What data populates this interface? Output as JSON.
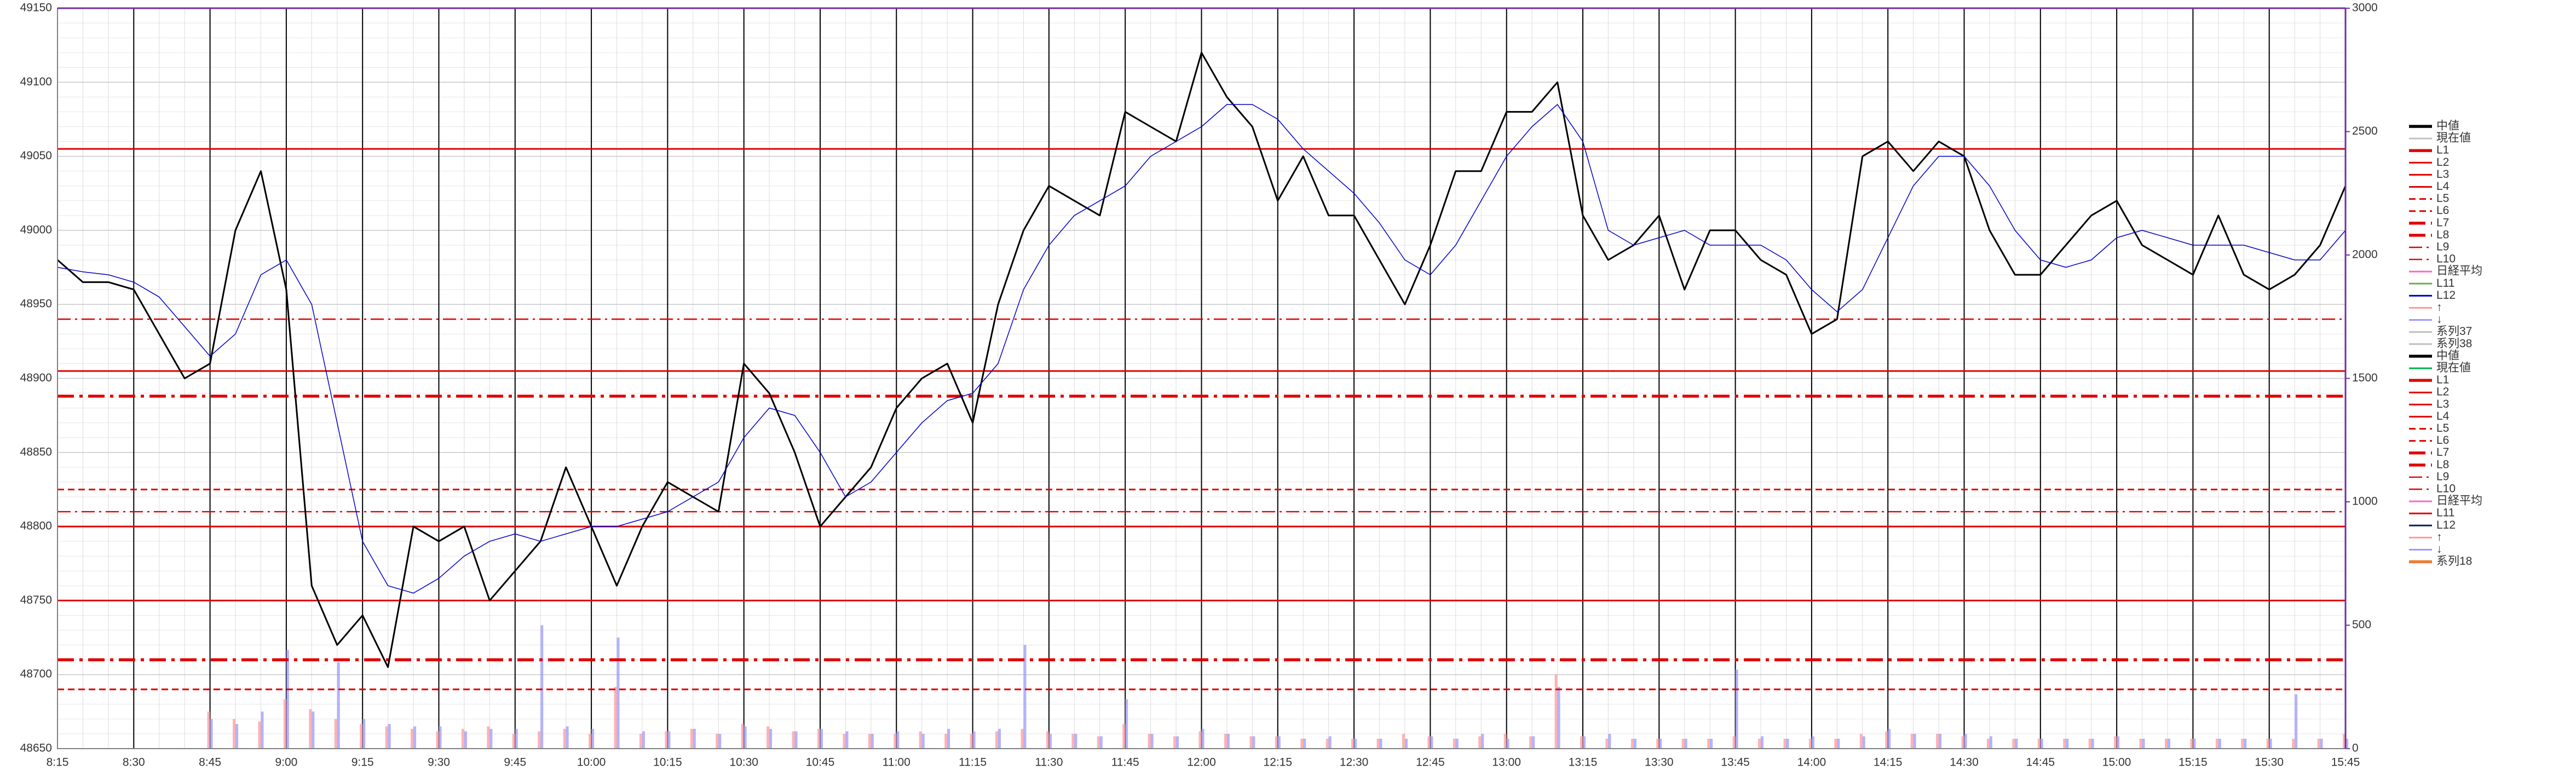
{
  "chart_data": {
    "type": "line",
    "x": [
      "8:15",
      "8:20",
      "8:25",
      "8:30",
      "8:35",
      "8:40",
      "8:45",
      "8:50",
      "8:55",
      "9:00",
      "9:05",
      "9:10",
      "9:15",
      "9:20",
      "9:25",
      "9:30",
      "9:35",
      "9:40",
      "9:45",
      "9:50",
      "9:55",
      "10:00",
      "10:05",
      "10:10",
      "10:15",
      "10:20",
      "10:25",
      "10:30",
      "10:35",
      "10:40",
      "10:45",
      "10:50",
      "10:55",
      "11:00",
      "11:05",
      "11:10",
      "11:15",
      "11:20",
      "11:25",
      "11:30",
      "11:35",
      "11:40",
      "11:45",
      "11:50",
      "11:55",
      "12:00",
      "12:05",
      "12:10",
      "12:15",
      "12:20",
      "12:25",
      "12:30",
      "12:35",
      "12:40",
      "12:45",
      "12:50",
      "12:55",
      "13:00",
      "13:05",
      "13:10",
      "13:15",
      "13:20",
      "13:25",
      "13:30",
      "13:35",
      "13:40",
      "13:45",
      "13:50",
      "13:55",
      "14:00",
      "14:05",
      "14:10",
      "14:15",
      "14:20",
      "14:25",
      "14:30",
      "14:35",
      "14:40",
      "14:45",
      "14:50",
      "14:55",
      "15:00",
      "15:05",
      "15:10",
      "15:15",
      "15:20",
      "15:25",
      "15:30",
      "15:35",
      "15:40",
      "15:45"
    ],
    "xlim": [
      "8:15",
      "15:45"
    ],
    "xticks": [
      "8:15",
      "8:30",
      "8:45",
      "9:00",
      "9:15",
      "9:30",
      "9:45",
      "10:00",
      "10:15",
      "10:30",
      "10:45",
      "11:00",
      "11:15",
      "11:30",
      "11:45",
      "12:00",
      "12:15",
      "12:30",
      "12:45",
      "13:00",
      "13:15",
      "13:30",
      "13:45",
      "14:00",
      "14:15",
      "14:30",
      "14:45",
      "15:00",
      "15:15",
      "15:30",
      "15:45"
    ],
    "ylim": [
      48650,
      49150
    ],
    "yticks": [
      48650,
      48700,
      48750,
      48800,
      48850,
      48900,
      48950,
      49000,
      49050,
      49100,
      49150
    ],
    "y2lim": [
      0,
      3000
    ],
    "y2ticks": [
      0,
      500,
      1000,
      1500,
      2000,
      2500,
      3000
    ],
    "grid": true,
    "legend_position": "right",
    "series": [
      {
        "name": "中値",
        "color": "#000000",
        "width": 3,
        "kind": "line",
        "values": [
          48980,
          48965,
          48965,
          48960,
          48930,
          48900,
          48910,
          49000,
          49040,
          48960,
          48760,
          48720,
          48740,
          48705,
          48800,
          48790,
          48800,
          48750,
          48770,
          48790,
          48840,
          48800,
          48760,
          48800,
          48830,
          48820,
          48810,
          48910,
          48890,
          48850,
          48800,
          48820,
          48840,
          48880,
          48900,
          48910,
          48870,
          48950,
          49000,
          49030,
          49020,
          49010,
          49080,
          49070,
          49060,
          49120,
          49090,
          49070,
          49020,
          49050,
          49010,
          49010,
          48980,
          48950,
          48990,
          49040,
          49040,
          49080,
          49080,
          49100,
          49010,
          48980,
          48990,
          49010,
          48960,
          49000,
          49000,
          48980,
          48970,
          48930,
          48940,
          49050,
          49060,
          49040,
          49060,
          49050,
          49000,
          48970,
          48970,
          48990,
          49010,
          49020,
          48990,
          48980,
          48970,
          49010,
          48970,
          48960,
          48970,
          48990,
          49030
        ]
      },
      {
        "name": "L12",
        "color": "#0000cc",
        "width": 1.5,
        "kind": "line",
        "values": [
          48975,
          48972,
          48970,
          48965,
          48955,
          48935,
          48915,
          48930,
          48970,
          48980,
          48950,
          48870,
          48790,
          48760,
          48755,
          48765,
          48780,
          48790,
          48795,
          48790,
          48795,
          48800,
          48800,
          48805,
          48810,
          48820,
          48830,
          48860,
          48880,
          48875,
          48850,
          48820,
          48830,
          48850,
          48870,
          48885,
          48890,
          48910,
          48960,
          48990,
          49010,
          49020,
          49030,
          49050,
          49060,
          49070,
          49085,
          49085,
          49075,
          49055,
          49040,
          49025,
          49005,
          48980,
          48970,
          48990,
          49020,
          49050,
          49070,
          49085,
          49060,
          49000,
          48990,
          48995,
          49000,
          48990,
          48990,
          48990,
          48980,
          48960,
          48945,
          48960,
          48995,
          49030,
          49050,
          49050,
          49030,
          49000,
          48980,
          48975,
          48980,
          48995,
          49000,
          48995,
          48990,
          48990,
          48990,
          48985,
          48980,
          48980,
          49000
        ]
      },
      {
        "name": "↑",
        "color": "#ff9999",
        "kind": "bar",
        "axis": "y2",
        "values": [
          null,
          null,
          null,
          null,
          null,
          null,
          150,
          120,
          110,
          200,
          160,
          120,
          100,
          90,
          80,
          70,
          80,
          90,
          60,
          70,
          80,
          60,
          250,
          60,
          70,
          80,
          60,
          100,
          90,
          70,
          80,
          60,
          60,
          60,
          70,
          60,
          60,
          70,
          80,
          70,
          60,
          50,
          100,
          60,
          50,
          70,
          60,
          50,
          50,
          40,
          40,
          40,
          40,
          60,
          50,
          40,
          50,
          60,
          50,
          300,
          50,
          40,
          40,
          40,
          40,
          40,
          50,
          40,
          40,
          40,
          40,
          60,
          70,
          60,
          60,
          50,
          40,
          40,
          40,
          40,
          40,
          50,
          40,
          40,
          40,
          40,
          40,
          40,
          40,
          40,
          60
        ]
      },
      {
        "name": "↓",
        "color": "#9999ff",
        "kind": "bar",
        "axis": "y2",
        "values": [
          null,
          null,
          null,
          null,
          null,
          null,
          120,
          100,
          150,
          400,
          150,
          350,
          120,
          100,
          90,
          90,
          70,
          80,
          80,
          500,
          90,
          80,
          450,
          70,
          70,
          80,
          60,
          90,
          80,
          70,
          80,
          70,
          60,
          70,
          60,
          80,
          70,
          80,
          420,
          60,
          60,
          50,
          200,
          60,
          50,
          80,
          60,
          50,
          50,
          40,
          50,
          40,
          40,
          40,
          50,
          40,
          60,
          40,
          50,
          250,
          50,
          60,
          40,
          40,
          40,
          40,
          320,
          50,
          40,
          50,
          40,
          50,
          80,
          60,
          60,
          60,
          50,
          40,
          40,
          40,
          40,
          50,
          40,
          40,
          40,
          40,
          40,
          40,
          220,
          40,
          40
        ]
      }
    ],
    "levels": [
      {
        "value": 49055,
        "style": "solid"
      },
      {
        "value": 48905,
        "style": "solid"
      },
      {
        "value": 48800,
        "style": "solid"
      },
      {
        "value": 48750,
        "style": "solid"
      },
      {
        "value": 48825,
        "style": "dash"
      },
      {
        "value": 48690,
        "style": "dash"
      },
      {
        "value": 48888,
        "style": "dashdot-thick"
      },
      {
        "value": 48710,
        "style": "dashdot-thick"
      },
      {
        "value": 48940,
        "style": "dashdot"
      },
      {
        "value": 48810,
        "style": "dashdot"
      }
    ],
    "level_color": "#e00000",
    "legend": [
      {
        "name": "中値",
        "color": "#000000",
        "style": "solid-thick"
      },
      {
        "name": "現在値",
        "color": "#c0c0c0",
        "style": "solid"
      },
      {
        "name": "L1",
        "color": "#e00000",
        "style": "solid-thick"
      },
      {
        "name": "L2",
        "color": "#e00000",
        "style": "solid"
      },
      {
        "name": "L3",
        "color": "#e00000",
        "style": "solid"
      },
      {
        "name": "L4",
        "color": "#e00000",
        "style": "solid"
      },
      {
        "name": "L5",
        "color": "#e00000",
        "style": "dash"
      },
      {
        "name": "L6",
        "color": "#e00000",
        "style": "dash"
      },
      {
        "name": "L7",
        "color": "#e00000",
        "style": "dashdot-thick"
      },
      {
        "name": "L8",
        "color": "#e00000",
        "style": "dashdot-thick"
      },
      {
        "name": "L9",
        "color": "#e00000",
        "style": "dashdot"
      },
      {
        "name": "L10",
        "color": "#e00000",
        "style": "dashdot"
      },
      {
        "name": "日経平均",
        "color": "#ff66cc",
        "style": "solid"
      },
      {
        "name": "L11",
        "color": "#70ad47",
        "style": "solid"
      },
      {
        "name": "L12",
        "color": "#0000cc",
        "style": "solid"
      },
      {
        "name": "↑",
        "color": "#ff9999",
        "style": "solid"
      },
      {
        "name": "↓",
        "color": "#9999ff",
        "style": "solid"
      },
      {
        "name": "系列37",
        "color": "#bfbfbf",
        "style": "solid"
      },
      {
        "name": "系列38",
        "color": "#bfbfbf",
        "style": "solid"
      },
      {
        "name": "中値",
        "color": "#000000",
        "style": "solid-thick"
      },
      {
        "name": "現在値",
        "color": "#00b050",
        "style": "solid"
      },
      {
        "name": "L1",
        "color": "#e00000",
        "style": "solid-thick"
      },
      {
        "name": "L2",
        "color": "#e00000",
        "style": "solid"
      },
      {
        "name": "L3",
        "color": "#e00000",
        "style": "solid"
      },
      {
        "name": "L4",
        "color": "#e00000",
        "style": "solid"
      },
      {
        "name": "L5",
        "color": "#e00000",
        "style": "dash"
      },
      {
        "name": "L6",
        "color": "#e00000",
        "style": "dash"
      },
      {
        "name": "L7",
        "color": "#e00000",
        "style": "dashdot-thick"
      },
      {
        "name": "L8",
        "color": "#e00000",
        "style": "dashdot-thick"
      },
      {
        "name": "L9",
        "color": "#e00000",
        "style": "dashdot"
      },
      {
        "name": "L10",
        "color": "#e00000",
        "style": "dashdot"
      },
      {
        "name": "日経平均",
        "color": "#ff66cc",
        "style": "solid"
      },
      {
        "name": "L11",
        "color": "#e00000",
        "style": "solid"
      },
      {
        "name": "L12",
        "color": "#002060",
        "style": "solid"
      },
      {
        "name": "↑",
        "color": "#ff9999",
        "style": "solid"
      },
      {
        "name": "↓",
        "color": "#9999ff",
        "style": "solid"
      },
      {
        "name": "系列18",
        "color": "#ed7d31",
        "style": "solid-thick"
      }
    ]
  }
}
